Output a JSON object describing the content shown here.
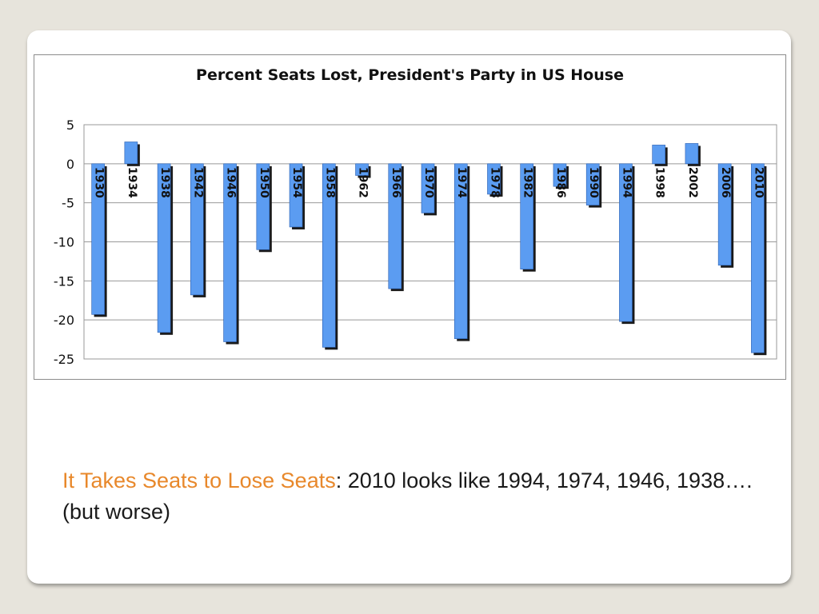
{
  "slide": {
    "caption_highlight": "It Takes Seats to Lose Seats",
    "caption_rest": ": 2010 looks like 1994, 1974, 1946, 1938…. (but worse)"
  },
  "colors": {
    "bar_fill": "#5b9cf1",
    "bar_shadow": "#1a1a1a",
    "caption_highlight": "#e8882b",
    "grid": "#999999"
  },
  "chart_data": {
    "type": "bar",
    "title": "Percent Seats Lost, President's Party in US House",
    "xlabel": "",
    "ylabel": "",
    "ylim": [
      -25,
      5
    ],
    "yticks": [
      5,
      0,
      -5,
      -10,
      -15,
      -20,
      -25
    ],
    "grid": true,
    "categories": [
      "1930",
      "1934",
      "1938",
      "1942",
      "1946",
      "1950",
      "1954",
      "1958",
      "1962",
      "1966",
      "1970",
      "1974",
      "1978",
      "1982",
      "1986",
      "1990",
      "1994",
      "1998",
      "2002",
      "2006",
      "2010"
    ],
    "values": [
      -19.3,
      2.8,
      -21.6,
      -16.8,
      -22.8,
      -11.0,
      -8.1,
      -23.5,
      -1.5,
      -16.0,
      -6.3,
      -22.4,
      -3.9,
      -13.5,
      -2.9,
      -5.3,
      -20.2,
      2.4,
      2.6,
      -13.0,
      -24.2
    ]
  }
}
